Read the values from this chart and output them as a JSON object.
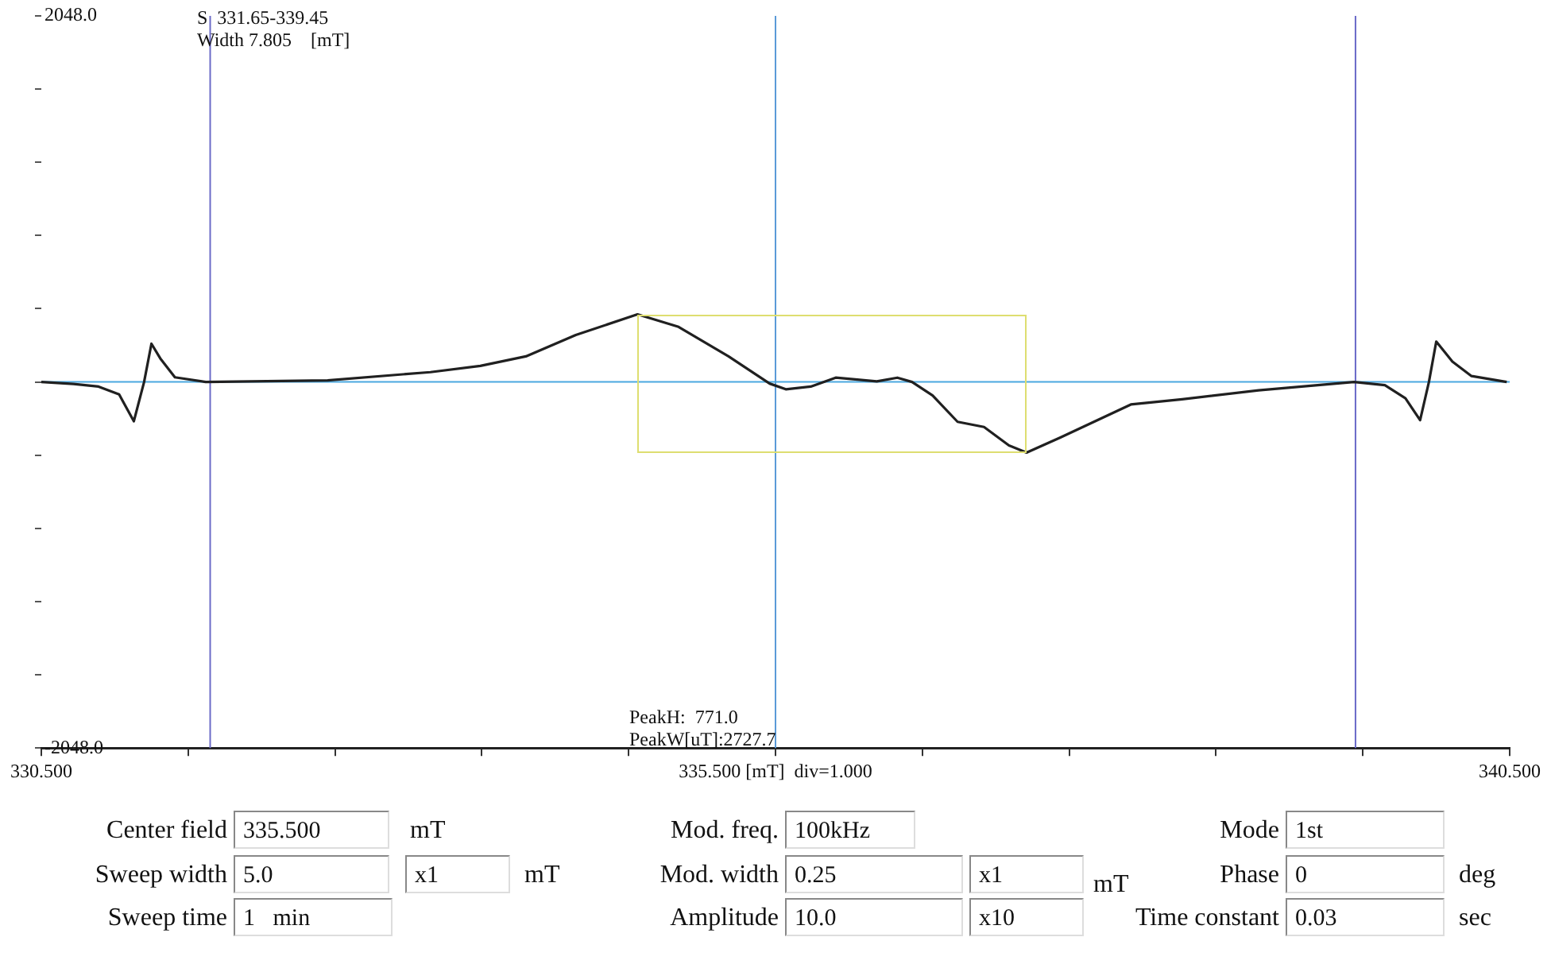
{
  "chart_data": [
    {
      "type": "line",
      "annotations": [
        "S  331.65-339.45",
        "Width 7.805    [mT]",
        "PeakH:  771.0",
        "PeakW[uT]:2727.7"
      ],
      "x": [
        330.5,
        330.72,
        330.89,
        331.03,
        331.13,
        331.2,
        331.25,
        331.31,
        331.41,
        331.62,
        332.45,
        333.15,
        333.49,
        333.8,
        334.14,
        334.56,
        334.84,
        335.18,
        335.46,
        335.57,
        335.74,
        335.91,
        336.19,
        336.33,
        336.43,
        336.57,
        336.74,
        336.92,
        337.09,
        337.21,
        337.44,
        337.92,
        338.27,
        338.79,
        339.44,
        339.65,
        339.79,
        339.89,
        339.95,
        340.0,
        340.11,
        340.24,
        340.48
      ],
      "series": [
        {
          "color": "#202020",
          "values": [
            0,
            -11,
            -26,
            -70,
            -220,
            0,
            214,
            132,
            26,
            0,
            9,
            55,
            90,
            143,
            263,
            378,
            308,
            143,
            -9,
            -41,
            -26,
            24,
            3,
            24,
            0,
            -76,
            -223,
            -252,
            -355,
            -395,
            -311,
            -126,
            -97,
            -47,
            0,
            -18,
            -91,
            -214,
            0,
            226,
            114,
            33,
            0
          ]
        }
      ],
      "xlim": [
        330.5,
        340.5
      ],
      "xticks": [
        {
          "value": 330.5,
          "label": "330.500"
        },
        {
          "value": 331.5,
          "label": null
        },
        {
          "value": 332.5,
          "label": null
        },
        {
          "value": 333.5,
          "label": null
        },
        {
          "value": 334.5,
          "label": null
        },
        {
          "value": 335.5,
          "label": "335.500 [mT]  div=1.000"
        },
        {
          "value": 336.5,
          "label": null
        },
        {
          "value": 337.5,
          "label": null
        },
        {
          "value": 338.5,
          "label": null
        },
        {
          "value": 339.5,
          "label": null
        },
        {
          "value": 340.5,
          "label": "340.500"
        }
      ],
      "ylim": [
        -2048,
        2048
      ],
      "yticks": [
        {
          "value": -2048,
          "label": "-2048.0"
        },
        {
          "value": -1638.4,
          "label": null
        },
        {
          "value": -1228.8,
          "label": null
        },
        {
          "value": -819.2,
          "label": null
        },
        {
          "value": -409.6,
          "label": null
        },
        {
          "value": 0,
          "label": null
        },
        {
          "value": 409.6,
          "label": null
        },
        {
          "value": 819.2,
          "label": null
        },
        {
          "value": 1228.8,
          "label": null
        },
        {
          "value": 1638.4,
          "label": null
        },
        {
          "value": 2048,
          "label": "2048.0"
        }
      ],
      "ref_lines": [
        {
          "axis": "x",
          "value": 331.65,
          "color": "#6a6ac8"
        },
        {
          "axis": "x",
          "value": 335.5,
          "color": "#5a9ad8"
        },
        {
          "axis": "x",
          "value": 339.45,
          "color": "#6a6ac8"
        },
        {
          "axis": "y",
          "value": 0,
          "color": "#4aa8e0"
        }
      ],
      "grid": false,
      "marker": "none"
    },
    {
      "type": "other",
      "annotations": [
        "Center field",
        "335.500",
        "mT",
        "Sweep width",
        "5.0",
        "x1",
        "mT",
        "Sweep time",
        "1   min",
        "Mod. freq.",
        "100kHz",
        "Mod. width",
        "0.25",
        "x1",
        "mT",
        "Amplitude",
        "10.0",
        "x10",
        "Mode",
        "1st",
        "Phase",
        "0",
        "deg",
        "Time constant",
        "0.03",
        "sec"
      ]
    }
  ]
}
